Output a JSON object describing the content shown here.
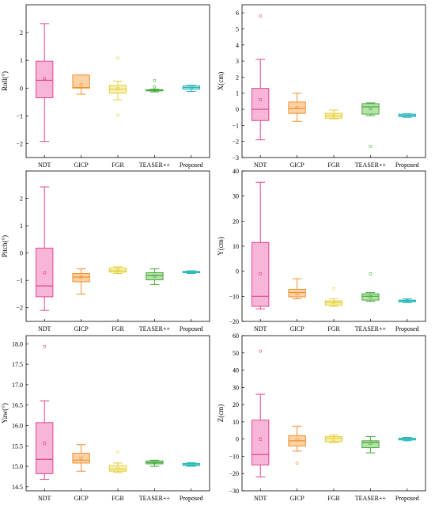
{
  "colors": {
    "NDT": {
      "fill": "#f7b6d8",
      "stroke": "#e0448f"
    },
    "GICP": {
      "fill": "#fbd2a6",
      "stroke": "#f28e2b"
    },
    "FGR": {
      "fill": "#f7f0b0",
      "stroke": "#e3cf3c"
    },
    "TEASER++": {
      "fill": "#b6e2a8",
      "stroke": "#48a83f"
    },
    "Proposed": {
      "fill": "#aee7e7",
      "stroke": "#2ab7b7"
    }
  },
  "chart_data": [
    {
      "type": "box",
      "ylabel": "Roll(°)",
      "categories": [
        "NDT",
        "GICP",
        "FGR",
        "TEASER++",
        "Proposed"
      ],
      "ylim": [
        -2.5,
        3.0
      ],
      "yticks": [
        -2,
        -1,
        0,
        1,
        2
      ],
      "yticklabels": [
        "−2",
        "−1",
        "0",
        "1",
        "2"
      ],
      "boxes": [
        {
          "whisker_low": -1.92,
          "q1": -0.35,
          "median": 0.28,
          "q3": 0.97,
          "whisker_high": 2.32,
          "mean": 0.35,
          "outliers": []
        },
        {
          "whisker_low": -0.22,
          "q1": 0.0,
          "median": 0.02,
          "q3": 0.47,
          "whisker_high": 0.47,
          "mean": 0.12,
          "outliers": []
        },
        {
          "whisker_low": -0.42,
          "q1": -0.18,
          "median": -0.04,
          "q3": 0.1,
          "whisker_high": 0.25,
          "mean": -0.02,
          "outliers": [
            1.08,
            -0.98
          ]
        },
        {
          "whisker_low": -0.14,
          "q1": -0.1,
          "median": -0.08,
          "q3": -0.06,
          "whisker_high": -0.04,
          "mean": -0.07,
          "outliers": [
            0.27,
            0.05
          ]
        },
        {
          "whisker_low": -0.12,
          "q1": -0.04,
          "median": 0.02,
          "q3": 0.08,
          "whisker_high": 0.1,
          "mean": 0.02,
          "outliers": []
        }
      ]
    },
    {
      "type": "box",
      "ylabel": "X(cm)",
      "categories": [
        "NDT",
        "GICP",
        "FGR",
        "TEASER++",
        "Proposed"
      ],
      "ylim": [
        -3,
        6.5
      ],
      "yticks": [
        -3,
        -2,
        -1,
        0,
        1,
        2,
        3,
        4,
        5,
        6
      ],
      "yticklabels": [
        "−3",
        "−2",
        "−1",
        "0",
        "1",
        "2",
        "3",
        "4",
        "5",
        "6"
      ],
      "boxes": [
        {
          "whisker_low": -1.9,
          "q1": -0.7,
          "median": 0.0,
          "q3": 1.3,
          "whisker_high": 3.1,
          "mean": 0.6,
          "outliers": [
            5.8
          ]
        },
        {
          "whisker_low": -0.75,
          "q1": -0.25,
          "median": 0.05,
          "q3": 0.45,
          "whisker_high": 1.0,
          "mean": 0.1,
          "outliers": []
        },
        {
          "whisker_low": -0.6,
          "q1": -0.55,
          "median": -0.4,
          "q3": -0.25,
          "whisker_high": -0.05,
          "mean": -0.4,
          "outliers": []
        },
        {
          "whisker_low": -0.4,
          "q1": -0.3,
          "median": 0.15,
          "q3": 0.35,
          "whisker_high": 0.4,
          "mean": 0.05,
          "outliers": [
            -2.3
          ]
        },
        {
          "whisker_low": -0.5,
          "q1": -0.45,
          "median": -0.38,
          "q3": -0.3,
          "whisker_high": -0.28,
          "mean": -0.38,
          "outliers": []
        }
      ]
    },
    {
      "type": "box",
      "ylabel": "Pitch(°)",
      "categories": [
        "NDT",
        "GICP",
        "FGR",
        "TEASER++",
        "Proposed"
      ],
      "ylim": [
        -2.5,
        3.0
      ],
      "yticks": [
        -2,
        -1,
        0,
        1,
        2
      ],
      "yticklabels": [
        "−2",
        "−1",
        "0",
        "1",
        "2"
      ],
      "boxes": [
        {
          "whisker_low": -2.1,
          "q1": -1.6,
          "median": -1.2,
          "q3": 0.18,
          "whisker_high": 2.42,
          "mean": -0.72,
          "outliers": []
        },
        {
          "whisker_low": -1.5,
          "q1": -1.05,
          "median": -0.88,
          "q3": -0.75,
          "whisker_high": -0.58,
          "mean": -0.88,
          "outliers": []
        },
        {
          "whisker_low": -0.75,
          "q1": -0.7,
          "median": -0.65,
          "q3": -0.55,
          "whisker_high": -0.5,
          "mean": -0.64,
          "outliers": []
        },
        {
          "whisker_low": -1.15,
          "q1": -0.98,
          "median": -0.82,
          "q3": -0.72,
          "whisker_high": -0.58,
          "mean": -0.84,
          "outliers": []
        },
        {
          "whisker_low": -0.75,
          "q1": -0.72,
          "median": -0.7,
          "q3": -0.67,
          "whisker_high": -0.65,
          "mean": -0.7,
          "outliers": []
        }
      ]
    },
    {
      "type": "box",
      "ylabel": "Y(cm)",
      "categories": [
        "NDT",
        "GICP",
        "FGR",
        "TEASER++",
        "Proposed"
      ],
      "ylim": [
        -20,
        40
      ],
      "yticks": [
        -20,
        -10,
        0,
        10,
        20,
        30,
        40
      ],
      "yticklabels": [
        "−20",
        "−10",
        "0",
        "10",
        "20",
        "30",
        "40"
      ],
      "boxes": [
        {
          "whisker_low": -15,
          "q1": -14,
          "median": -10,
          "q3": 11.5,
          "whisker_high": 35.5,
          "mean": -1,
          "outliers": []
        },
        {
          "whisker_low": -11,
          "q1": -10.2,
          "median": -8.5,
          "q3": -7.2,
          "whisker_high": -3,
          "mean": -9,
          "outliers": []
        },
        {
          "whisker_low": -14,
          "q1": -13.5,
          "median": -12.5,
          "q3": -11.8,
          "whisker_high": -11,
          "mean": -12.5,
          "outliers": [
            -7
          ]
        },
        {
          "whisker_low": -12,
          "q1": -11.5,
          "median": -10,
          "q3": -9,
          "whisker_high": -8.5,
          "mean": -10.2,
          "outliers": [
            -1
          ]
        },
        {
          "whisker_low": -12.5,
          "q1": -12.2,
          "median": -11.8,
          "q3": -11.5,
          "whisker_high": -11,
          "mean": -11.8,
          "outliers": []
        }
      ]
    },
    {
      "type": "box",
      "ylabel": "Yaw(°)",
      "categories": [
        "NDT",
        "GICP",
        "FGR",
        "TEASER++",
        "Proposed"
      ],
      "ylim": [
        14.4,
        18.2
      ],
      "yticks": [
        14.5,
        15.0,
        15.5,
        16.0,
        16.5,
        17.0,
        17.5,
        18.0
      ],
      "yticklabels": [
        "14.5",
        "15.0",
        "15.5",
        "16.0",
        "16.5",
        "17.0",
        "17.5",
        "18.0"
      ],
      "boxes": [
        {
          "whisker_low": 14.68,
          "q1": 14.82,
          "median": 15.17,
          "q3": 16.07,
          "whisker_high": 16.6,
          "mean": 15.57,
          "outliers": [
            17.93
          ]
        },
        {
          "whisker_low": 14.88,
          "q1": 15.08,
          "median": 15.15,
          "q3": 15.32,
          "whisker_high": 15.53,
          "mean": 15.2,
          "outliers": []
        },
        {
          "whisker_low": 14.85,
          "q1": 14.88,
          "median": 14.93,
          "q3": 15.02,
          "whisker_high": 15.08,
          "mean": 14.95,
          "outliers": [
            15.35
          ]
        },
        {
          "whisker_low": 15.0,
          "q1": 15.06,
          "median": 15.09,
          "q3": 15.13,
          "whisker_high": 15.15,
          "mean": 15.1,
          "outliers": []
        },
        {
          "whisker_low": 15.0,
          "q1": 15.02,
          "median": 15.04,
          "q3": 15.07,
          "whisker_high": 15.09,
          "mean": 15.05,
          "outliers": []
        }
      ]
    },
    {
      "type": "box",
      "ylabel": "Z(cm)",
      "categories": [
        "NDT",
        "GICP",
        "FGR",
        "TEASER++",
        "Proposed"
      ],
      "ylim": [
        -30,
        60
      ],
      "yticks": [
        -30,
        -20,
        -10,
        0,
        10,
        20,
        30,
        40,
        50,
        60
      ],
      "yticklabels": [
        "−30",
        "−20",
        "−10",
        "0",
        "10",
        "20",
        "30",
        "40",
        "50",
        "60"
      ],
      "boxes": [
        {
          "whisker_low": -22,
          "q1": -15,
          "median": -9,
          "q3": 11,
          "whisker_high": 26,
          "mean": 0,
          "outliers": [
            51
          ]
        },
        {
          "whisker_low": -7,
          "q1": -4,
          "median": -1,
          "q3": 2,
          "whisker_high": 7.5,
          "mean": -0.5,
          "outliers": [
            -14
          ]
        },
        {
          "whisker_low": -2,
          "q1": -1.5,
          "median": 0.5,
          "q3": 1.5,
          "whisker_high": 2.5,
          "mean": 0,
          "outliers": []
        },
        {
          "whisker_low": -8,
          "q1": -5,
          "median": -2,
          "q3": -1,
          "whisker_high": 1.5,
          "mean": -2.5,
          "outliers": []
        },
        {
          "whisker_low": -1,
          "q1": -0.5,
          "median": 0,
          "q3": 0.5,
          "whisker_high": 1,
          "mean": 0,
          "outliers": []
        }
      ]
    }
  ]
}
